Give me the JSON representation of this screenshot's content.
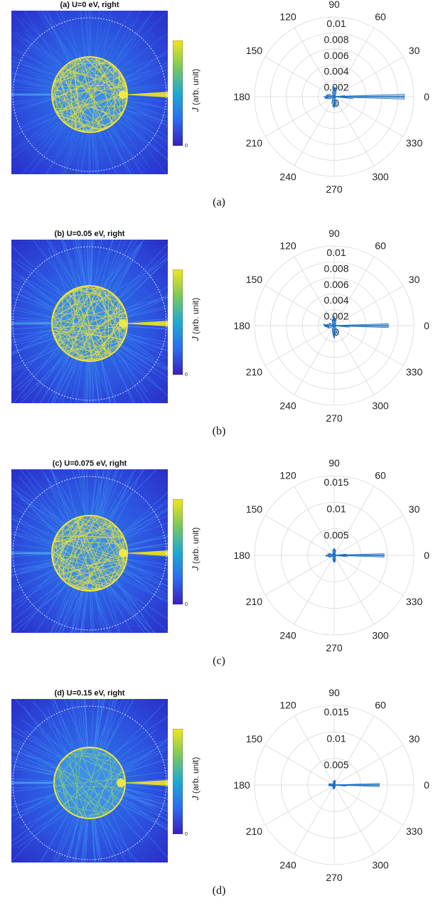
{
  "colorbar": {
    "label_symbol": "J",
    "label_text": "(arb. unit)",
    "tick": "0"
  },
  "angle_labels": [
    "0",
    "30",
    "60",
    "90",
    "120",
    "150",
    "180",
    "210",
    "240",
    "270",
    "300",
    "330"
  ],
  "colors": {
    "trace": "#1f6fbf",
    "grid": "#d9d9d9",
    "heat_low": "#3a1fbd",
    "heat_high": "#f2e51e"
  },
  "panels": [
    {
      "title": "(a) U=0 eV, right",
      "caption": "(a)"
    },
    {
      "title": "(b) U=0.05 eV, right",
      "caption": "(b)"
    },
    {
      "title": "(c) U=0.075 eV, right",
      "caption": "(c)"
    },
    {
      "title": "(d) U=0.15 eV, right",
      "caption": "(d)"
    }
  ],
  "chart_data": [
    {
      "type": "heatmap",
      "title": "(a) U=0 eV, right",
      "colorbar_label": "J (arb. unit)",
      "colorbar_min": 0
    },
    {
      "type": "polar",
      "rmax": 0.01,
      "rticks": [
        0,
        0.002,
        0.004,
        0.006,
        0.008,
        0.01
      ],
      "rtick_labels": [
        "0",
        "0.002",
        "0.004",
        "0.006",
        "0.008",
        "0.01"
      ],
      "series": [
        {
          "theta_deg": [
            0,
            90,
            180,
            270
          ],
          "r": [
            0.0088,
            0.0012,
            0.0013,
            0.0014
          ]
        }
      ]
    },
    {
      "type": "heatmap",
      "title": "(b) U=0.05 eV, right",
      "colorbar_label": "J (arb. unit)",
      "colorbar_min": 0
    },
    {
      "type": "polar",
      "rmax": 0.01,
      "rticks": [
        0,
        0.002,
        0.004,
        0.006,
        0.008,
        0.01
      ],
      "rtick_labels": [
        "0",
        "0.002",
        "0.004",
        "0.006",
        "0.008",
        "0.01"
      ],
      "series": [
        {
          "theta_deg": [
            0,
            90,
            180,
            270
          ],
          "r": [
            0.0068,
            0.0012,
            0.0013,
            0.0015
          ]
        }
      ]
    },
    {
      "type": "heatmap",
      "title": "(c) U=0.075 eV, right",
      "colorbar_label": "J (arb. unit)",
      "colorbar_min": 0
    },
    {
      "type": "polar",
      "rmax": 0.015,
      "rticks": [
        0,
        0.005,
        0.01,
        0.015
      ],
      "rtick_labels": [
        "",
        "0.005",
        "0.01",
        "0.015"
      ],
      "series": [
        {
          "theta_deg": [
            0,
            90,
            180,
            270
          ],
          "r": [
            0.0094,
            0.0012,
            0.0016,
            0.0013
          ]
        }
      ]
    },
    {
      "type": "heatmap",
      "title": "(d) U=0.15 eV, right",
      "colorbar_label": "J (arb. unit)",
      "colorbar_min": 0
    },
    {
      "type": "polar",
      "rmax": 0.015,
      "rticks": [
        0,
        0.005,
        0.01,
        0.015
      ],
      "rtick_labels": [
        "",
        "0.005",
        "0.01",
        "0.015"
      ],
      "series": [
        {
          "theta_deg": [
            0,
            90,
            180,
            270
          ],
          "r": [
            0.0085,
            0.0008,
            0.001,
            0.0007
          ]
        }
      ]
    }
  ]
}
